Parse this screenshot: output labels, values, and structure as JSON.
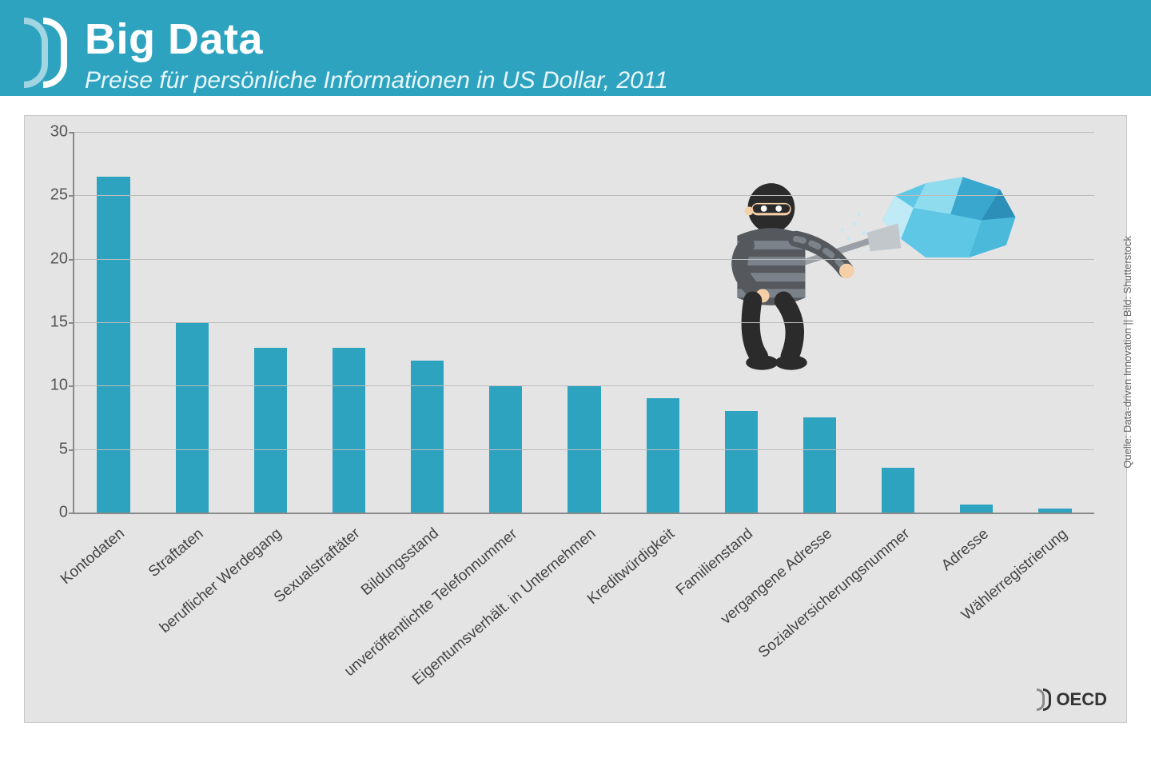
{
  "header": {
    "title": "Big Data",
    "subtitle": "Preise für persönliche Informationen in US Dollar, 2011"
  },
  "chart": {
    "type": "bar",
    "ylim": [
      0,
      30
    ],
    "ytick_step": 5,
    "yticks": [
      0,
      5,
      10,
      15,
      20,
      25,
      30
    ],
    "bar_color": "#2ea3c0",
    "background_color": "#e4e4e4",
    "grid_color": "#bdbdbd",
    "axis_color": "#8a8a8a",
    "bar_width_ratio": 0.42,
    "label_fontsize": 19,
    "ytick_fontsize": 20,
    "categories": [
      "Kontodaten",
      "Straftaten",
      "beruflicher Werdegang",
      "Sexualstraftäter",
      "Bildungsstand",
      "unveröffentlichte Telefonnummer",
      "Eigentumsverhält. in Unternehmen",
      "Kreditwürdigkeit",
      "Familienstand",
      "vergangene Adresse",
      "Sozialversicherungsnummer",
      "Adresse",
      "Wählerregistrierung"
    ],
    "values": [
      26.5,
      15,
      13,
      13,
      12,
      10,
      10,
      9,
      8,
      7.5,
      3.5,
      0.6,
      0.3
    ]
  },
  "attribution": {
    "source": "Quelle: Data-driven Innovation || Bild: Shutterstock",
    "org": "OECD"
  },
  "illustration": {
    "thief_color_dark": "#2b2b2b",
    "thief_color_stripe": "#7b8289",
    "thief_skin": "#f5cfa8",
    "cloud_colors": [
      "#5fc7e6",
      "#3aa7cf",
      "#8fdcef",
      "#2b8fb8",
      "#bfeaf6",
      "#4bb9da"
    ]
  }
}
